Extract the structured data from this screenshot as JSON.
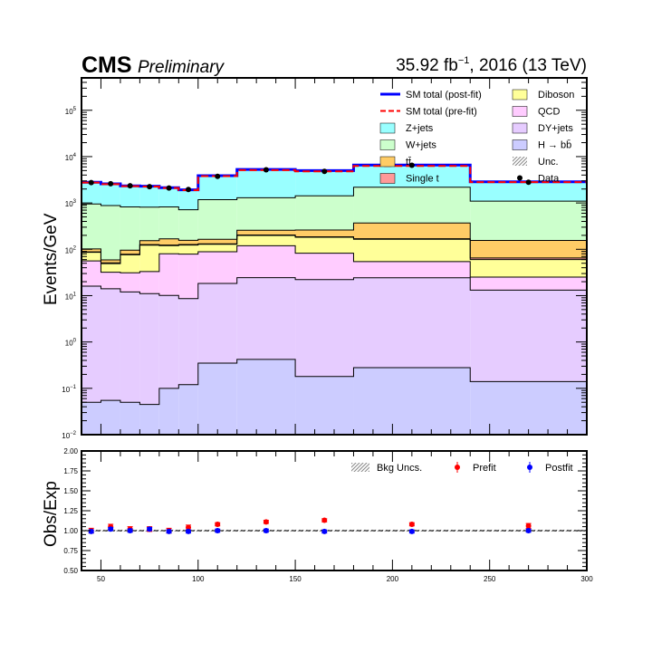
{
  "header": {
    "experiment": "CMS",
    "status": "Preliminary",
    "lumi_prefix": "35.92 fb",
    "lumi_exponent": "−1",
    "lumi_suffix": ", 2016 (13 TeV)"
  },
  "chart_data": [
    {
      "type": "area",
      "ylabel": "Events/GeV",
      "yscale": "log",
      "ylim": [
        0.01,
        500000
      ],
      "xlim": [
        40,
        300
      ],
      "ytick_labels": [
        {
          "value": 0.01,
          "base": "10",
          "exp": "−2"
        },
        {
          "value": 0.1,
          "base": "10",
          "exp": "−1"
        },
        {
          "value": 1,
          "base": "10",
          "exp": "0"
        },
        {
          "value": 10,
          "base": "10",
          "exp": "1"
        },
        {
          "value": 100,
          "base": "10",
          "exp": "2"
        },
        {
          "value": 1000,
          "base": "10",
          "exp": "3"
        },
        {
          "value": 10000,
          "base": "10",
          "exp": "4"
        },
        {
          "value": 100000,
          "base": "10",
          "exp": "5"
        }
      ],
      "bin_edges": [
        40,
        50,
        60,
        70,
        80,
        90,
        100,
        120,
        150,
        180,
        240,
        300
      ],
      "stack_order": [
        "H → bb̄",
        "DY+jets",
        "QCD",
        "Diboson",
        "Single t",
        "tt̄",
        "W+jets",
        "Z+jets"
      ],
      "series": [
        {
          "name": "H → bb̄",
          "color": "#ccccff",
          "values": [
            0.05,
            0.055,
            0.05,
            0.045,
            0.1,
            0.12,
            0.35,
            0.42,
            0.18,
            0.28,
            0.14
          ]
        },
        {
          "name": "DY+jets",
          "color": "#e6ccff",
          "values": [
            16,
            14,
            12,
            11,
            10,
            8.5,
            18,
            24,
            22,
            24,
            13
          ]
        },
        {
          "name": "QCD",
          "color": "#ffccff",
          "values": [
            40,
            18,
            19,
            22,
            70,
            70,
            70,
            95,
            60,
            30,
            12
          ]
        },
        {
          "name": "Diboson",
          "color": "#ffff99",
          "values": [
            30,
            17,
            45,
            90,
            40,
            45,
            40,
            80,
            100,
            110,
            35
          ]
        },
        {
          "name": "Single t",
          "color": "#ff9999",
          "values": [
            2,
            2,
            2,
            3,
            3,
            3,
            3,
            4,
            4,
            5,
            5
          ]
        },
        {
          "name": "tt̄",
          "color": "#ffcc66",
          "values": [
            14,
            8,
            18,
            28,
            45,
            30,
            33,
            55,
            75,
            200,
            90
          ]
        },
        {
          "name": "W+jets",
          "color": "#ccffcc",
          "values": [
            848,
            819,
            724,
            656,
            655,
            558,
            1015,
            1040,
            1160,
            1820,
            938
          ]
        },
        {
          "name": "Z+jets",
          "color": "#99ffff",
          "values": [
            1850,
            1700,
            1520,
            1490,
            1310,
            1190,
            2680,
            3980,
            3580,
            4180,
            1640
          ]
        }
      ],
      "lines": [
        {
          "name": "SM total (post-fit)",
          "color": "#0000ff",
          "style": "solid",
          "values": [
            2800,
            2580,
            2340,
            2300,
            2134,
            1918,
            3878,
            5279,
            5001,
            6569,
            2870
          ]
        },
        {
          "name": "SM total (pre-fit)",
          "color": "#ff0000",
          "style": "dashed",
          "values": [
            2750,
            2540,
            2300,
            2260,
            2100,
            1890,
            3800,
            5100,
            4800,
            6300,
            2820
          ]
        }
      ],
      "data_points": {
        "name": "Data",
        "x": [
          45,
          55,
          65,
          75,
          85,
          95,
          110,
          135,
          165,
          210,
          270
        ],
        "y": [
          2750,
          2600,
          2350,
          2250,
          2100,
          1950,
          3750,
          5200,
          4800,
          6500,
          2800
        ]
      },
      "legend_entries": [
        "SM total (post-fit)",
        "Diboson",
        "SM total (pre-fit)",
        "QCD",
        "Z+jets",
        "DY+jets",
        "W+jets",
        "H → bb̄",
        "tt̄",
        "Unc.",
        "Single t",
        "Data"
      ],
      "legend_placement": "top-right"
    },
    {
      "type": "scatter",
      "ylabel": "Obs/Exp",
      "ylim": [
        0.5,
        2.0
      ],
      "xlim": [
        40,
        300
      ],
      "yticks": [
        "0.50",
        "0.75",
        "1.00",
        "1.25",
        "1.50",
        "1.75",
        "2.00"
      ],
      "xticks": [
        "50",
        "100",
        "150",
        "200",
        "250",
        "300"
      ],
      "reference_line": 1.0,
      "series": [
        {
          "name": "Prefit",
          "color": "#ff0000",
          "x": [
            45,
            55,
            65,
            75,
            85,
            95,
            110,
            135,
            165,
            210,
            270
          ],
          "y": [
            1.0,
            1.05,
            1.02,
            1.02,
            1.0,
            1.04,
            1.08,
            1.11,
            1.13,
            1.08,
            1.06
          ],
          "err": [
            0.03,
            0.03,
            0.03,
            0.03,
            0.03,
            0.03,
            0.02,
            0.02,
            0.02,
            0.02,
            0.03
          ]
        },
        {
          "name": "Postfit",
          "color": "#0000ff",
          "x": [
            45,
            55,
            65,
            75,
            85,
            95,
            110,
            135,
            165,
            210,
            270
          ],
          "y": [
            0.99,
            1.02,
            1.0,
            1.02,
            0.99,
            0.99,
            1.0,
            1.0,
            0.99,
            0.99,
            1.0
          ],
          "err": [
            0.02,
            0.02,
            0.02,
            0.02,
            0.02,
            0.02,
            0.02,
            0.02,
            0.02,
            0.02,
            0.02
          ]
        }
      ],
      "legend_entries": [
        "Bkg Uncs.",
        "Prefit",
        "Postfit"
      ],
      "legend_placement": "top"
    }
  ]
}
